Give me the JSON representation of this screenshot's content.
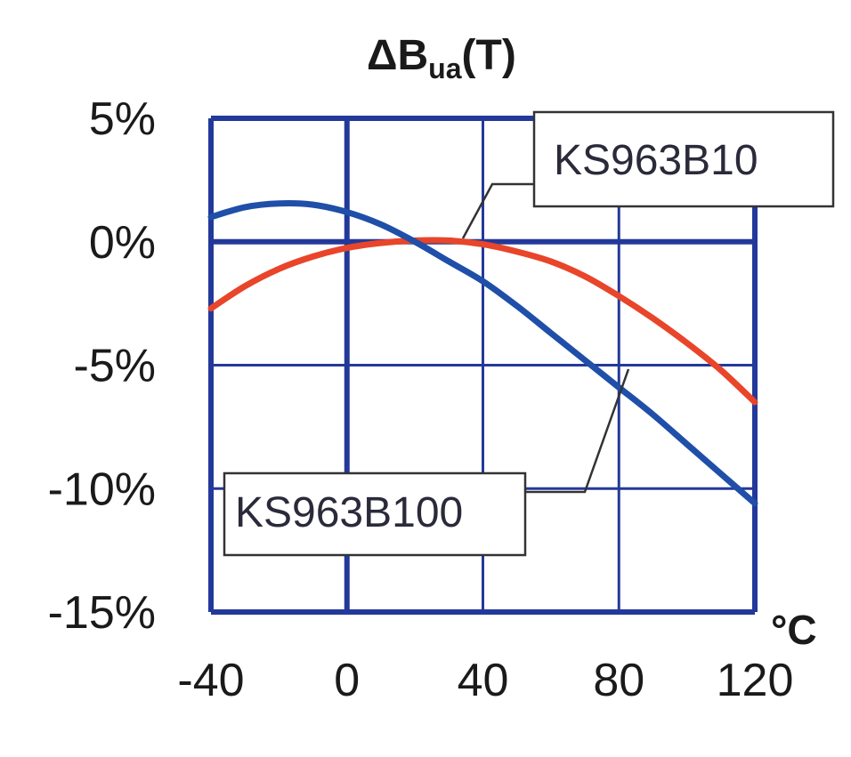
{
  "chart_data": {
    "type": "line",
    "title": {
      "prefix": "ΔB",
      "subscript": "ua",
      "suffix": "(T)"
    },
    "x_unit": "°C",
    "x_ticks": [
      -40,
      0,
      40,
      80,
      120
    ],
    "x_tick_labels": [
      "-40",
      "0",
      "40",
      "80",
      "120"
    ],
    "y_ticks": [
      5,
      0,
      -5,
      -10,
      -15
    ],
    "y_tick_labels": [
      "5%",
      "0%",
      "-5%",
      "-10%",
      "-15%"
    ],
    "xlim": [
      -40,
      120
    ],
    "ylim": [
      -15,
      5
    ],
    "grid": true,
    "series": [
      {
        "name": "KS963B10",
        "color": "#e8452a",
        "x": [
          -40,
          -30,
          -20,
          -10,
          0,
          10,
          20,
          30,
          40,
          50,
          60,
          70,
          80,
          90,
          100,
          110,
          120
        ],
        "y": [
          -2.7,
          -1.8,
          -1.1,
          -0.6,
          -0.25,
          -0.05,
          0.05,
          0.05,
          -0.1,
          -0.4,
          -0.8,
          -1.4,
          -2.2,
          -3.1,
          -4.1,
          -5.2,
          -6.5
        ]
      },
      {
        "name": "KS963B100",
        "color": "#1f4fa8",
        "x": [
          -40,
          -30,
          -20,
          -10,
          0,
          10,
          20,
          30,
          40,
          50,
          60,
          70,
          80,
          90,
          100,
          110,
          120
        ],
        "y": [
          1.0,
          1.4,
          1.55,
          1.5,
          1.2,
          0.7,
          0.0,
          -0.8,
          -1.6,
          -2.6,
          -3.7,
          -4.8,
          -5.9,
          -7.0,
          -8.2,
          -9.4,
          -10.6
        ]
      }
    ]
  },
  "colors": {
    "grid": "#23399a",
    "callout_border": "#333333",
    "leader_line": "#333333"
  }
}
